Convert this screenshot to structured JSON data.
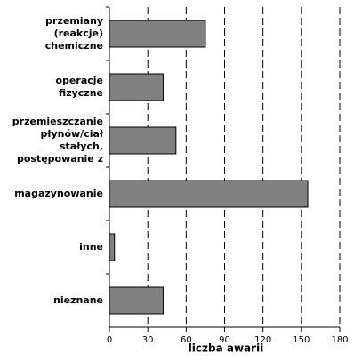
{
  "chart_data": {
    "type": "hbar",
    "categories": [
      "przemiany\n(reakcje)\nchemiczne",
      "operacje\nfizyczne",
      "przemieszczanie\npłynów/ciał\nstałych,\npostępowanie z",
      "magazynowanie",
      "inne",
      "nieznane"
    ],
    "values": [
      75,
      42,
      52,
      155,
      4,
      42
    ],
    "color": "#808080",
    "x_label": "liczba awarii",
    "xlim": [
      0,
      180
    ],
    "xticks": [
      0,
      30,
      60,
      90,
      120,
      150,
      180
    ],
    "grid": true
  }
}
